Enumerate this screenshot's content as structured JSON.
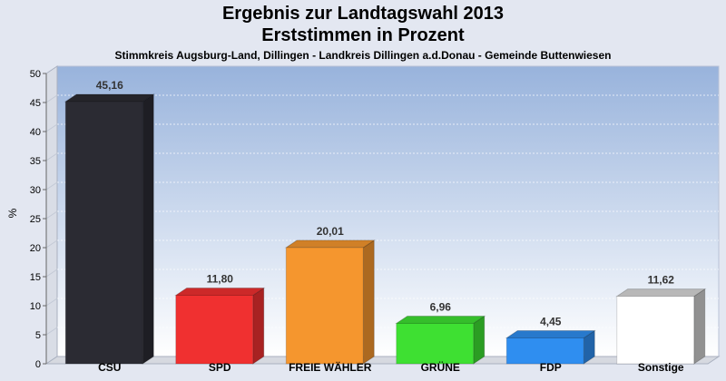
{
  "chart_data": {
    "type": "bar",
    "title": "Ergebnis zur Landtagswahl 2013",
    "subtitle": "Erststimmen in Prozent",
    "subtitle2": "Stimmkreis Augsburg-Land, Dillingen - Landkreis Dillingen a.d.Donau - Gemeinde Buttenwiesen",
    "ylabel": "%",
    "ylim": [
      0,
      50
    ],
    "yticks": [
      "0",
      "5",
      "10",
      "15",
      "20",
      "25",
      "30",
      "35",
      "40",
      "45",
      "50"
    ],
    "categories": [
      "CSU",
      "SPD",
      "FREIE WÄHLER",
      "GRÜNE",
      "FDP",
      "Sonstige"
    ],
    "values": [
      45.16,
      11.8,
      20.01,
      6.96,
      4.45,
      11.62
    ],
    "value_labels": [
      "45,16",
      "11,80",
      "20,01",
      "6,96",
      "4,45",
      "11,62"
    ],
    "colors": [
      "#2b2b33",
      "#f03030",
      "#f5962e",
      "#3ee032",
      "#2f8ef0",
      "#ffffff"
    ],
    "grid": true
  }
}
